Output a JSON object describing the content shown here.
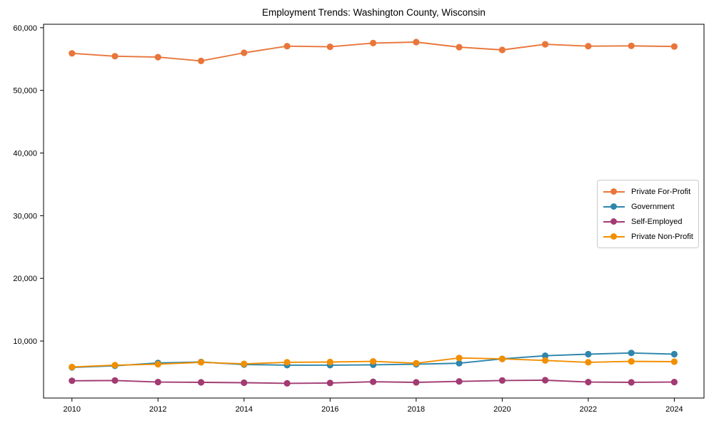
{
  "chart_data": {
    "type": "line",
    "title": "Employment Trends: Washington County, Wisconsin",
    "xlabel": "",
    "ylabel": "",
    "x": [
      2010,
      2011,
      2012,
      2013,
      2014,
      2015,
      2016,
      2017,
      2018,
      2019,
      2020,
      2021,
      2022,
      2023,
      2024
    ],
    "series": [
      {
        "name": "Private For-Profit",
        "color": "#E8763A",
        "values": [
          55900,
          55450,
          55300,
          54700,
          56000,
          57050,
          56950,
          57550,
          57700,
          56900,
          56450,
          57350,
          57050,
          57100,
          57000
        ]
      },
      {
        "name": "Government",
        "color": "#2E86AB",
        "values": [
          5800,
          6050,
          6500,
          6650,
          6250,
          6150,
          6150,
          6200,
          6300,
          6450,
          7150,
          7650,
          7900,
          8100,
          7900
        ]
      },
      {
        "name": "Self-Employed",
        "color": "#A23B72",
        "values": [
          3650,
          3700,
          3450,
          3400,
          3350,
          3250,
          3300,
          3500,
          3400,
          3550,
          3700,
          3750,
          3450,
          3400,
          3450
        ]
      },
      {
        "name": "Private Non-Profit",
        "color": "#F18F01",
        "values": [
          5850,
          6150,
          6300,
          6600,
          6350,
          6600,
          6650,
          6750,
          6450,
          7300,
          7150,
          6900,
          6600,
          6750,
          6700
        ]
      }
    ],
    "xlim": [
      2009.34,
      2024.69
    ],
    "ylim": [
      900,
      60550
    ],
    "x_ticks": {
      "values": [
        2010,
        2012,
        2014,
        2016,
        2018,
        2020,
        2022,
        2024
      ],
      "labels": [
        "2010",
        "2012",
        "2014",
        "2016",
        "2018",
        "2020",
        "2022",
        "2024"
      ]
    },
    "y_ticks": {
      "values": [
        10000,
        20000,
        30000,
        40000,
        50000,
        60000
      ],
      "labels": [
        "10,000",
        "20,000",
        "30,000",
        "40,000",
        "50,000",
        "60,000"
      ]
    },
    "legend": {
      "location": "center right",
      "entries": [
        "Private For-Profit",
        "Government",
        "Self-Employed",
        "Private Non-Profit"
      ]
    },
    "grid": false,
    "marker": "circle",
    "marker_size": 9.2,
    "line_width": 1.9,
    "background": "#ffffff",
    "spine_color": "#000000",
    "text_color": "#000000",
    "tick_font_size": 11,
    "title_font_size": 13.5
  }
}
